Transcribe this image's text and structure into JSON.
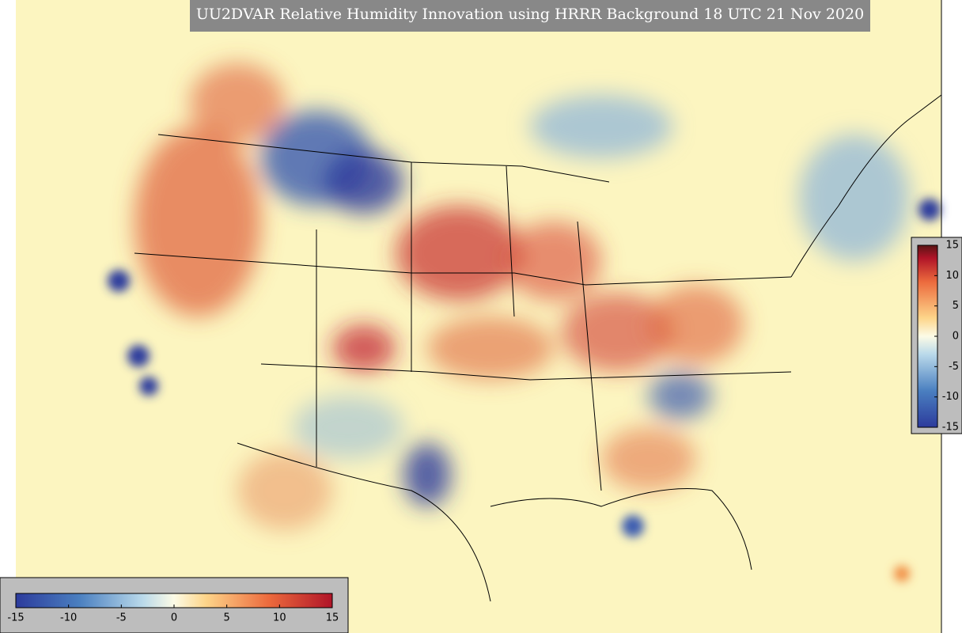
{
  "title": "UU2DVAR Relative Humidity Innovation using HRRR Background 18 UTC 21 Nov 2020",
  "colorbar_bottom": {
    "ticks": [
      -15,
      -10,
      -5,
      0,
      5,
      10,
      15
    ]
  },
  "colorbar_right": {
    "ticks": [
      15,
      10,
      5,
      0,
      -5,
      -10,
      -15
    ]
  }
}
